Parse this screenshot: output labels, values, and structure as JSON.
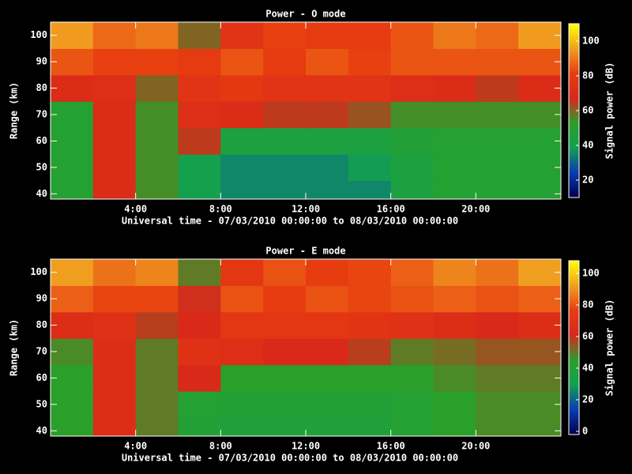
{
  "chart_data": [
    {
      "type": "heatmap",
      "title": "Power - O mode",
      "xlabel": "Universal time - 07/03/2010 00:00:00 to 08/03/2010 00:00:00",
      "ylabel": "Range (km)",
      "zlabel": "Signal power (dB)",
      "xbins": [
        0,
        2,
        4,
        6,
        8,
        10,
        12,
        14,
        16,
        18,
        20,
        22,
        24
      ],
      "ybins": [
        38,
        45,
        55,
        65,
        75,
        85,
        95,
        105
      ],
      "values": [
        [
          50,
          70,
          55,
          40,
          35,
          35,
          35,
          35,
          45,
          50,
          50,
          50
        ],
        [
          50,
          70,
          55,
          40,
          35,
          35,
          35,
          38,
          45,
          50,
          50,
          50
        ],
        [
          50,
          70,
          55,
          65,
          45,
          45,
          45,
          45,
          48,
          50,
          50,
          50
        ],
        [
          50,
          70,
          55,
          72,
          70,
          65,
          65,
          62,
          55,
          55,
          55,
          55
        ],
        [
          70,
          72,
          60,
          75,
          78,
          75,
          75,
          75,
          72,
          70,
          65,
          70
        ],
        [
          85,
          82,
          82,
          80,
          85,
          80,
          85,
          82,
          85,
          85,
          85,
          85
        ],
        [
          95,
          88,
          90,
          60,
          75,
          82,
          80,
          80,
          85,
          90,
          88,
          95
        ]
      ],
      "xlim": [
        0,
        24
      ],
      "xticks": [
        {
          "value": 4,
          "label": "4:00"
        },
        {
          "value": 8,
          "label": "8:00"
        },
        {
          "value": 12,
          "label": "12:00"
        },
        {
          "value": 16,
          "label": "16:00"
        },
        {
          "value": 20,
          "label": "20:00"
        }
      ],
      "ylim": [
        38,
        105
      ],
      "yticks": [
        40,
        50,
        60,
        70,
        80,
        90,
        100
      ],
      "zlim": [
        10,
        110
      ],
      "zticks": [
        20,
        40,
        60,
        80,
        100
      ],
      "colors": [
        "#00004a",
        "#0a3cb4",
        "#12a050",
        "#2aa02a",
        "#d8281a",
        "#e83c10",
        "#f0a020",
        "#ffff00"
      ]
    },
    {
      "type": "heatmap",
      "title": "Power - E mode",
      "xlabel": "Universal time - 07/03/2010 00:00:00 to 08/03/2010 00:00:00",
      "ylabel": "Range (km)",
      "zlabel": "Signal power (dB)",
      "xbins": [
        0,
        2,
        4,
        6,
        8,
        10,
        12,
        14,
        16,
        18,
        20,
        22,
        24
      ],
      "ybins": [
        38,
        45,
        55,
        65,
        75,
        85,
        95,
        105
      ],
      "values": [
        [
          45,
          65,
          50,
          40,
          38,
          38,
          38,
          38,
          42,
          45,
          48,
          48
        ],
        [
          45,
          65,
          50,
          42,
          40,
          40,
          40,
          40,
          42,
          45,
          48,
          48
        ],
        [
          45,
          65,
          50,
          62,
          45,
          45,
          45,
          45,
          45,
          48,
          50,
          50
        ],
        [
          48,
          65,
          50,
          68,
          66,
          62,
          62,
          58,
          50,
          52,
          55,
          55
        ],
        [
          65,
          68,
          58,
          62,
          72,
          72,
          72,
          70,
          68,
          65,
          62,
          65
        ],
        [
          82,
          78,
          78,
          60,
          80,
          76,
          80,
          78,
          80,
          82,
          80,
          82
        ],
        [
          92,
          85,
          88,
          50,
          72,
          80,
          76,
          78,
          82,
          88,
          85,
          92
        ]
      ],
      "xlim": [
        0,
        24
      ],
      "xticks": [
        {
          "value": 4,
          "label": "4:00"
        },
        {
          "value": 8,
          "label": "8:00"
        },
        {
          "value": 12,
          "label": "12:00"
        },
        {
          "value": 16,
          "label": "16:00"
        },
        {
          "value": 20,
          "label": "20:00"
        }
      ],
      "ylim": [
        38,
        105
      ],
      "yticks": [
        40,
        50,
        60,
        70,
        80,
        90,
        100
      ],
      "zlim": [
        -2,
        108
      ],
      "zticks": [
        0,
        20,
        40,
        60,
        80,
        100
      ],
      "colors": [
        "#00004a",
        "#0a3cb4",
        "#12a050",
        "#2aa02a",
        "#d8281a",
        "#e83c10",
        "#f0a020",
        "#ffff00"
      ]
    }
  ]
}
